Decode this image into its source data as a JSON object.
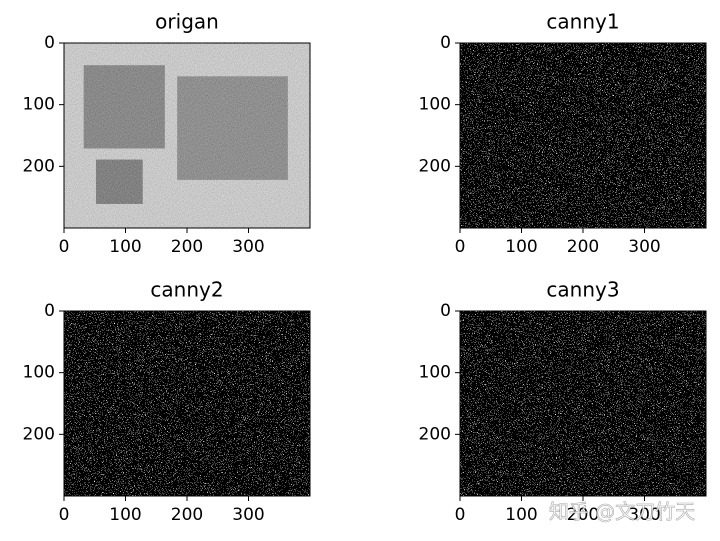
{
  "chart_data": [
    {
      "type": "image",
      "title": "origan",
      "image": "original",
      "xlim": [
        0,
        400
      ],
      "ylim": [
        300,
        0
      ],
      "xticks": [
        0,
        100,
        200,
        300
      ],
      "yticks": [
        0,
        100,
        200
      ]
    },
    {
      "type": "image",
      "title": "canny1",
      "image": "edges",
      "xlim": [
        0,
        400
      ],
      "ylim": [
        300,
        0
      ],
      "xticks": [
        0,
        100,
        200,
        300
      ],
      "yticks": [
        0,
        100,
        200
      ]
    },
    {
      "type": "image",
      "title": "canny2",
      "image": "edges",
      "xlim": [
        0,
        400
      ],
      "ylim": [
        300,
        0
      ],
      "xticks": [
        0,
        100,
        200,
        300
      ],
      "yticks": [
        0,
        100,
        200
      ]
    },
    {
      "type": "image",
      "title": "canny3",
      "image": "edges",
      "xlim": [
        0,
        400
      ],
      "ylim": [
        300,
        0
      ],
      "xticks": [
        0,
        100,
        200,
        300
      ],
      "yticks": [
        0,
        100,
        200
      ]
    }
  ],
  "watermark": "知乎 @文刀竹天"
}
